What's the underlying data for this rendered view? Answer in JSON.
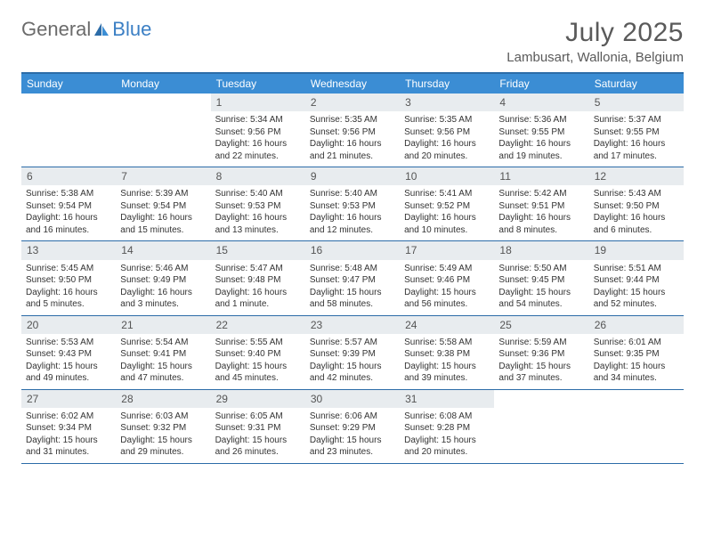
{
  "brand": {
    "part1": "General",
    "part2": "Blue"
  },
  "title": "July 2025",
  "location": "Lambusart, Wallonia, Belgium",
  "colors": {
    "header_bar": "#3b8dd4",
    "border": "#2c6ca8",
    "daynum_bg": "#e8ecef",
    "text": "#333333",
    "title_text": "#5a5a5a"
  },
  "weekdays": [
    "Sunday",
    "Monday",
    "Tuesday",
    "Wednesday",
    "Thursday",
    "Friday",
    "Saturday"
  ],
  "weeks": [
    [
      null,
      null,
      {
        "n": "1",
        "sr": "5:34 AM",
        "ss": "9:56 PM",
        "dl": "16 hours and 22 minutes."
      },
      {
        "n": "2",
        "sr": "5:35 AM",
        "ss": "9:56 PM",
        "dl": "16 hours and 21 minutes."
      },
      {
        "n": "3",
        "sr": "5:35 AM",
        "ss": "9:56 PM",
        "dl": "16 hours and 20 minutes."
      },
      {
        "n": "4",
        "sr": "5:36 AM",
        "ss": "9:55 PM",
        "dl": "16 hours and 19 minutes."
      },
      {
        "n": "5",
        "sr": "5:37 AM",
        "ss": "9:55 PM",
        "dl": "16 hours and 17 minutes."
      }
    ],
    [
      {
        "n": "6",
        "sr": "5:38 AM",
        "ss": "9:54 PM",
        "dl": "16 hours and 16 minutes."
      },
      {
        "n": "7",
        "sr": "5:39 AM",
        "ss": "9:54 PM",
        "dl": "16 hours and 15 minutes."
      },
      {
        "n": "8",
        "sr": "5:40 AM",
        "ss": "9:53 PM",
        "dl": "16 hours and 13 minutes."
      },
      {
        "n": "9",
        "sr": "5:40 AM",
        "ss": "9:53 PM",
        "dl": "16 hours and 12 minutes."
      },
      {
        "n": "10",
        "sr": "5:41 AM",
        "ss": "9:52 PM",
        "dl": "16 hours and 10 minutes."
      },
      {
        "n": "11",
        "sr": "5:42 AM",
        "ss": "9:51 PM",
        "dl": "16 hours and 8 minutes."
      },
      {
        "n": "12",
        "sr": "5:43 AM",
        "ss": "9:50 PM",
        "dl": "16 hours and 6 minutes."
      }
    ],
    [
      {
        "n": "13",
        "sr": "5:45 AM",
        "ss": "9:50 PM",
        "dl": "16 hours and 5 minutes."
      },
      {
        "n": "14",
        "sr": "5:46 AM",
        "ss": "9:49 PM",
        "dl": "16 hours and 3 minutes."
      },
      {
        "n": "15",
        "sr": "5:47 AM",
        "ss": "9:48 PM",
        "dl": "16 hours and 1 minute."
      },
      {
        "n": "16",
        "sr": "5:48 AM",
        "ss": "9:47 PM",
        "dl": "15 hours and 58 minutes."
      },
      {
        "n": "17",
        "sr": "5:49 AM",
        "ss": "9:46 PM",
        "dl": "15 hours and 56 minutes."
      },
      {
        "n": "18",
        "sr": "5:50 AM",
        "ss": "9:45 PM",
        "dl": "15 hours and 54 minutes."
      },
      {
        "n": "19",
        "sr": "5:51 AM",
        "ss": "9:44 PM",
        "dl": "15 hours and 52 minutes."
      }
    ],
    [
      {
        "n": "20",
        "sr": "5:53 AM",
        "ss": "9:43 PM",
        "dl": "15 hours and 49 minutes."
      },
      {
        "n": "21",
        "sr": "5:54 AM",
        "ss": "9:41 PM",
        "dl": "15 hours and 47 minutes."
      },
      {
        "n": "22",
        "sr": "5:55 AM",
        "ss": "9:40 PM",
        "dl": "15 hours and 45 minutes."
      },
      {
        "n": "23",
        "sr": "5:57 AM",
        "ss": "9:39 PM",
        "dl": "15 hours and 42 minutes."
      },
      {
        "n": "24",
        "sr": "5:58 AM",
        "ss": "9:38 PM",
        "dl": "15 hours and 39 minutes."
      },
      {
        "n": "25",
        "sr": "5:59 AM",
        "ss": "9:36 PM",
        "dl": "15 hours and 37 minutes."
      },
      {
        "n": "26",
        "sr": "6:01 AM",
        "ss": "9:35 PM",
        "dl": "15 hours and 34 minutes."
      }
    ],
    [
      {
        "n": "27",
        "sr": "6:02 AM",
        "ss": "9:34 PM",
        "dl": "15 hours and 31 minutes."
      },
      {
        "n": "28",
        "sr": "6:03 AM",
        "ss": "9:32 PM",
        "dl": "15 hours and 29 minutes."
      },
      {
        "n": "29",
        "sr": "6:05 AM",
        "ss": "9:31 PM",
        "dl": "15 hours and 26 minutes."
      },
      {
        "n": "30",
        "sr": "6:06 AM",
        "ss": "9:29 PM",
        "dl": "15 hours and 23 minutes."
      },
      {
        "n": "31",
        "sr": "6:08 AM",
        "ss": "9:28 PM",
        "dl": "15 hours and 20 minutes."
      },
      null,
      null
    ]
  ],
  "labels": {
    "sunrise": "Sunrise:",
    "sunset": "Sunset:",
    "daylight": "Daylight:"
  }
}
